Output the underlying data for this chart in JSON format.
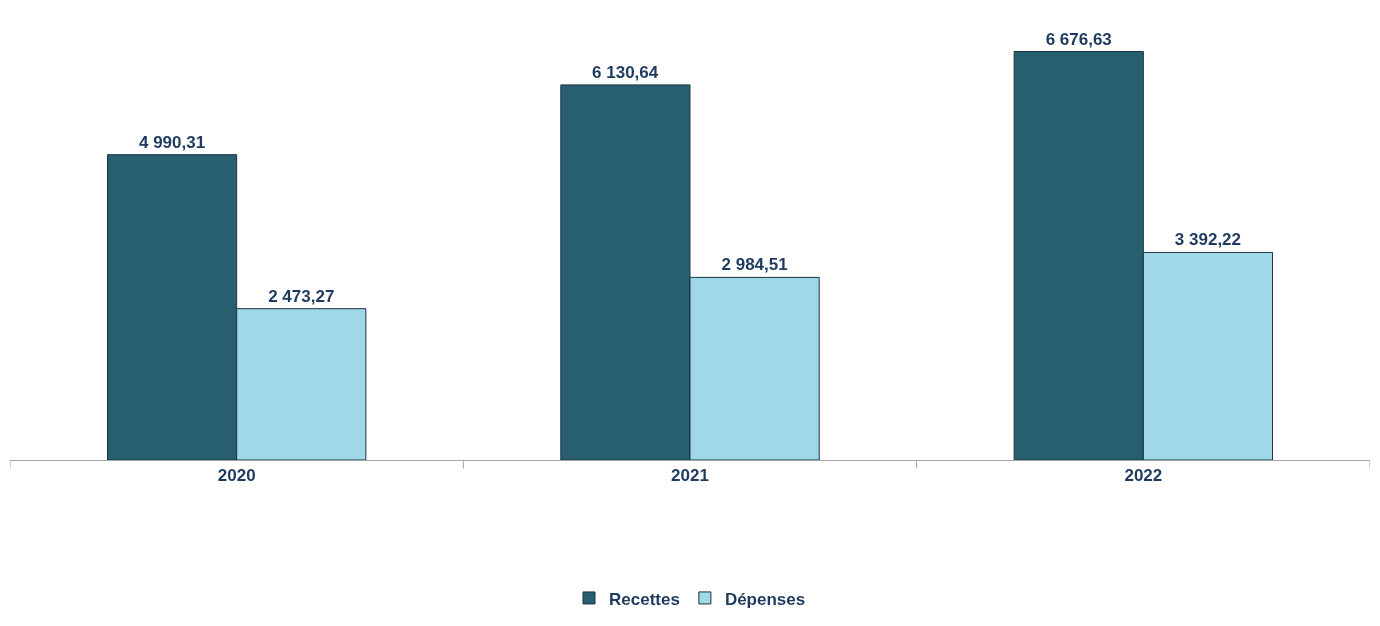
{
  "chart_data": {
    "type": "bar",
    "categories": [
      "2020",
      "2021",
      "2022"
    ],
    "series": [
      {
        "name": "Recettes",
        "color": "#275f6e",
        "values": [
          4990.31,
          6130.64,
          6676.63
        ],
        "value_labels": [
          "4 990,31",
          "6 130,64",
          "6 676,63"
        ]
      },
      {
        "name": "Dépenses",
        "color": "#9fd9e8",
        "values": [
          2473.27,
          2984.51,
          3392.22
        ],
        "value_labels": [
          "2 473,27",
          "2 984,51",
          "3 392,22"
        ]
      }
    ],
    "legend": "bottom"
  }
}
